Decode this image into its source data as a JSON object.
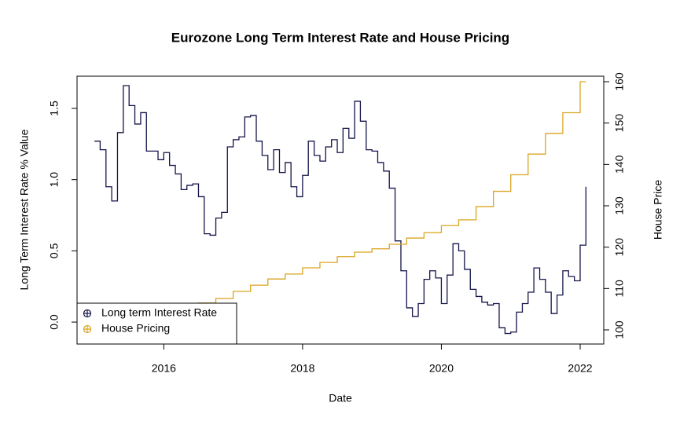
{
  "chart_data": {
    "type": "line",
    "title": "Eurozone Long Term Interest Rate and House Pricing",
    "x_label": "Date",
    "y_label": "Long Term Interest Rate % Value",
    "y2_label": "House Price",
    "xlim": [
      2014.75,
      2022.34
    ],
    "xticks": [
      2016,
      2018,
      2020,
      2022
    ],
    "ylim": [
      -0.154,
      1.726
    ],
    "yticks": [
      {
        "value": 0,
        "label": "0.0"
      },
      {
        "value": 0.5,
        "label": "0.5"
      },
      {
        "value": 1,
        "label": "1.0"
      },
      {
        "value": 1.5,
        "label": "1.5"
      }
    ],
    "y2lim": [
      96.58,
      161.33
    ],
    "y2ticks": [
      100,
      110,
      120,
      130,
      140,
      150,
      160
    ],
    "legend": "bottomleft",
    "series": [
      {
        "name": "Long term Interest Rate",
        "color": "#14144a",
        "x": [
          2015,
          2015.083,
          2015.167,
          2015.25,
          2015.333,
          2015.417,
          2015.5,
          2015.583,
          2015.667,
          2015.75,
          2015.833,
          2015.917,
          2016,
          2016.083,
          2016.167,
          2016.25,
          2016.333,
          2016.417,
          2016.5,
          2016.583,
          2016.667,
          2016.75,
          2016.833,
          2016.917,
          2017,
          2017.083,
          2017.167,
          2017.25,
          2017.333,
          2017.417,
          2017.5,
          2017.583,
          2017.667,
          2017.75,
          2017.833,
          2017.917,
          2018,
          2018.083,
          2018.167,
          2018.25,
          2018.333,
          2018.417,
          2018.5,
          2018.583,
          2018.667,
          2018.75,
          2018.833,
          2018.917,
          2019,
          2019.083,
          2019.167,
          2019.25,
          2019.333,
          2019.417,
          2019.5,
          2019.583,
          2019.667,
          2019.75,
          2019.833,
          2019.917,
          2020,
          2020.083,
          2020.167,
          2020.25,
          2020.333,
          2020.417,
          2020.5,
          2020.583,
          2020.667,
          2020.75,
          2020.833,
          2020.917,
          2021,
          2021.083,
          2021.167,
          2021.25,
          2021.333,
          2021.417,
          2021.5,
          2021.583,
          2021.667,
          2021.75,
          2021.833,
          2021.917,
          2022,
          2022.083
        ],
        "values": [
          1.27,
          1.21,
          0.95,
          0.85,
          1.33,
          1.66,
          1.52,
          1.39,
          1.47,
          1.2,
          1.2,
          1.14,
          1.19,
          1.1,
          1.04,
          0.93,
          0.96,
          0.97,
          0.88,
          0.62,
          0.61,
          0.73,
          0.77,
          1.23,
          1.28,
          1.3,
          1.44,
          1.45,
          1.27,
          1.17,
          1.07,
          1.21,
          1.05,
          1.12,
          0.95,
          0.88,
          1.03,
          1.27,
          1.17,
          1.13,
          1.23,
          1.28,
          1.19,
          1.36,
          1.29,
          1.55,
          1.41,
          1.21,
          1.2,
          1.12,
          1.06,
          0.94,
          0.57,
          0.36,
          0.1,
          0.04,
          0.13,
          0.3,
          0.36,
          0.31,
          0.13,
          0.33,
          0.55,
          0.5,
          0.37,
          0.23,
          0.18,
          0.14,
          0.12,
          0.13,
          -0.04,
          -0.08,
          -0.07,
          0.07,
          0.13,
          0.21,
          0.38,
          0.3,
          0.21,
          0.06,
          0.19,
          0.36,
          0.32,
          0.29,
          0.54,
          0.95
        ]
      },
      {
        "name": "House Pricing",
        "color": "#daa520",
        "axis": "y2",
        "x": [
          2015,
          2015.25,
          2015.5,
          2015.75,
          2016,
          2016.25,
          2016.5,
          2016.75,
          2017,
          2017.25,
          2017.5,
          2017.75,
          2018,
          2018.25,
          2018.5,
          2018.75,
          2019,
          2019.25,
          2019.5,
          2019.75,
          2020,
          2020.25,
          2020.5,
          2020.75,
          2021,
          2021.25,
          2021.5,
          2021.75,
          2022
        ],
        "values": [
          100.5,
          101.4,
          102.3,
          103.2,
          104.3,
          105.4,
          106.5,
          107.6,
          109.3,
          110.8,
          112.3,
          113.5,
          115,
          116.3,
          117.7,
          118.8,
          119.6,
          120.7,
          122.2,
          123.5,
          125.2,
          126.6,
          129.8,
          133.5,
          137.5,
          142.5,
          147.5,
          152.5,
          160
        ]
      }
    ]
  }
}
